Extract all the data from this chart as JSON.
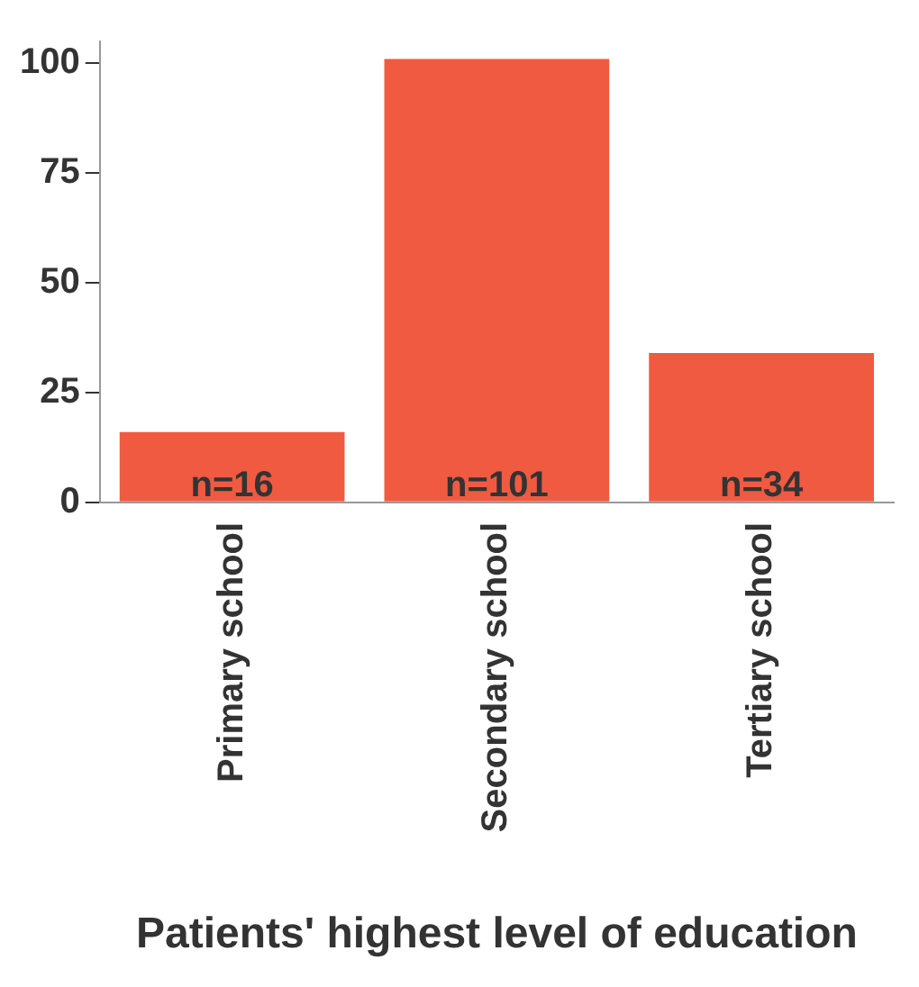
{
  "chart_data": {
    "type": "bar",
    "xlabel": "Patients' highest level of education",
    "categories": [
      "Primary school",
      "Secondary school",
      "Tertiary school"
    ],
    "values": [
      16,
      101,
      34
    ],
    "value_labels": [
      "n=16",
      "n=101",
      "n=34"
    ],
    "color": "#f05a40",
    "ylim": [
      0,
      105
    ],
    "yticks": [
      0,
      25,
      50,
      75,
      100
    ],
    "grid": false,
    "legend": false
  }
}
